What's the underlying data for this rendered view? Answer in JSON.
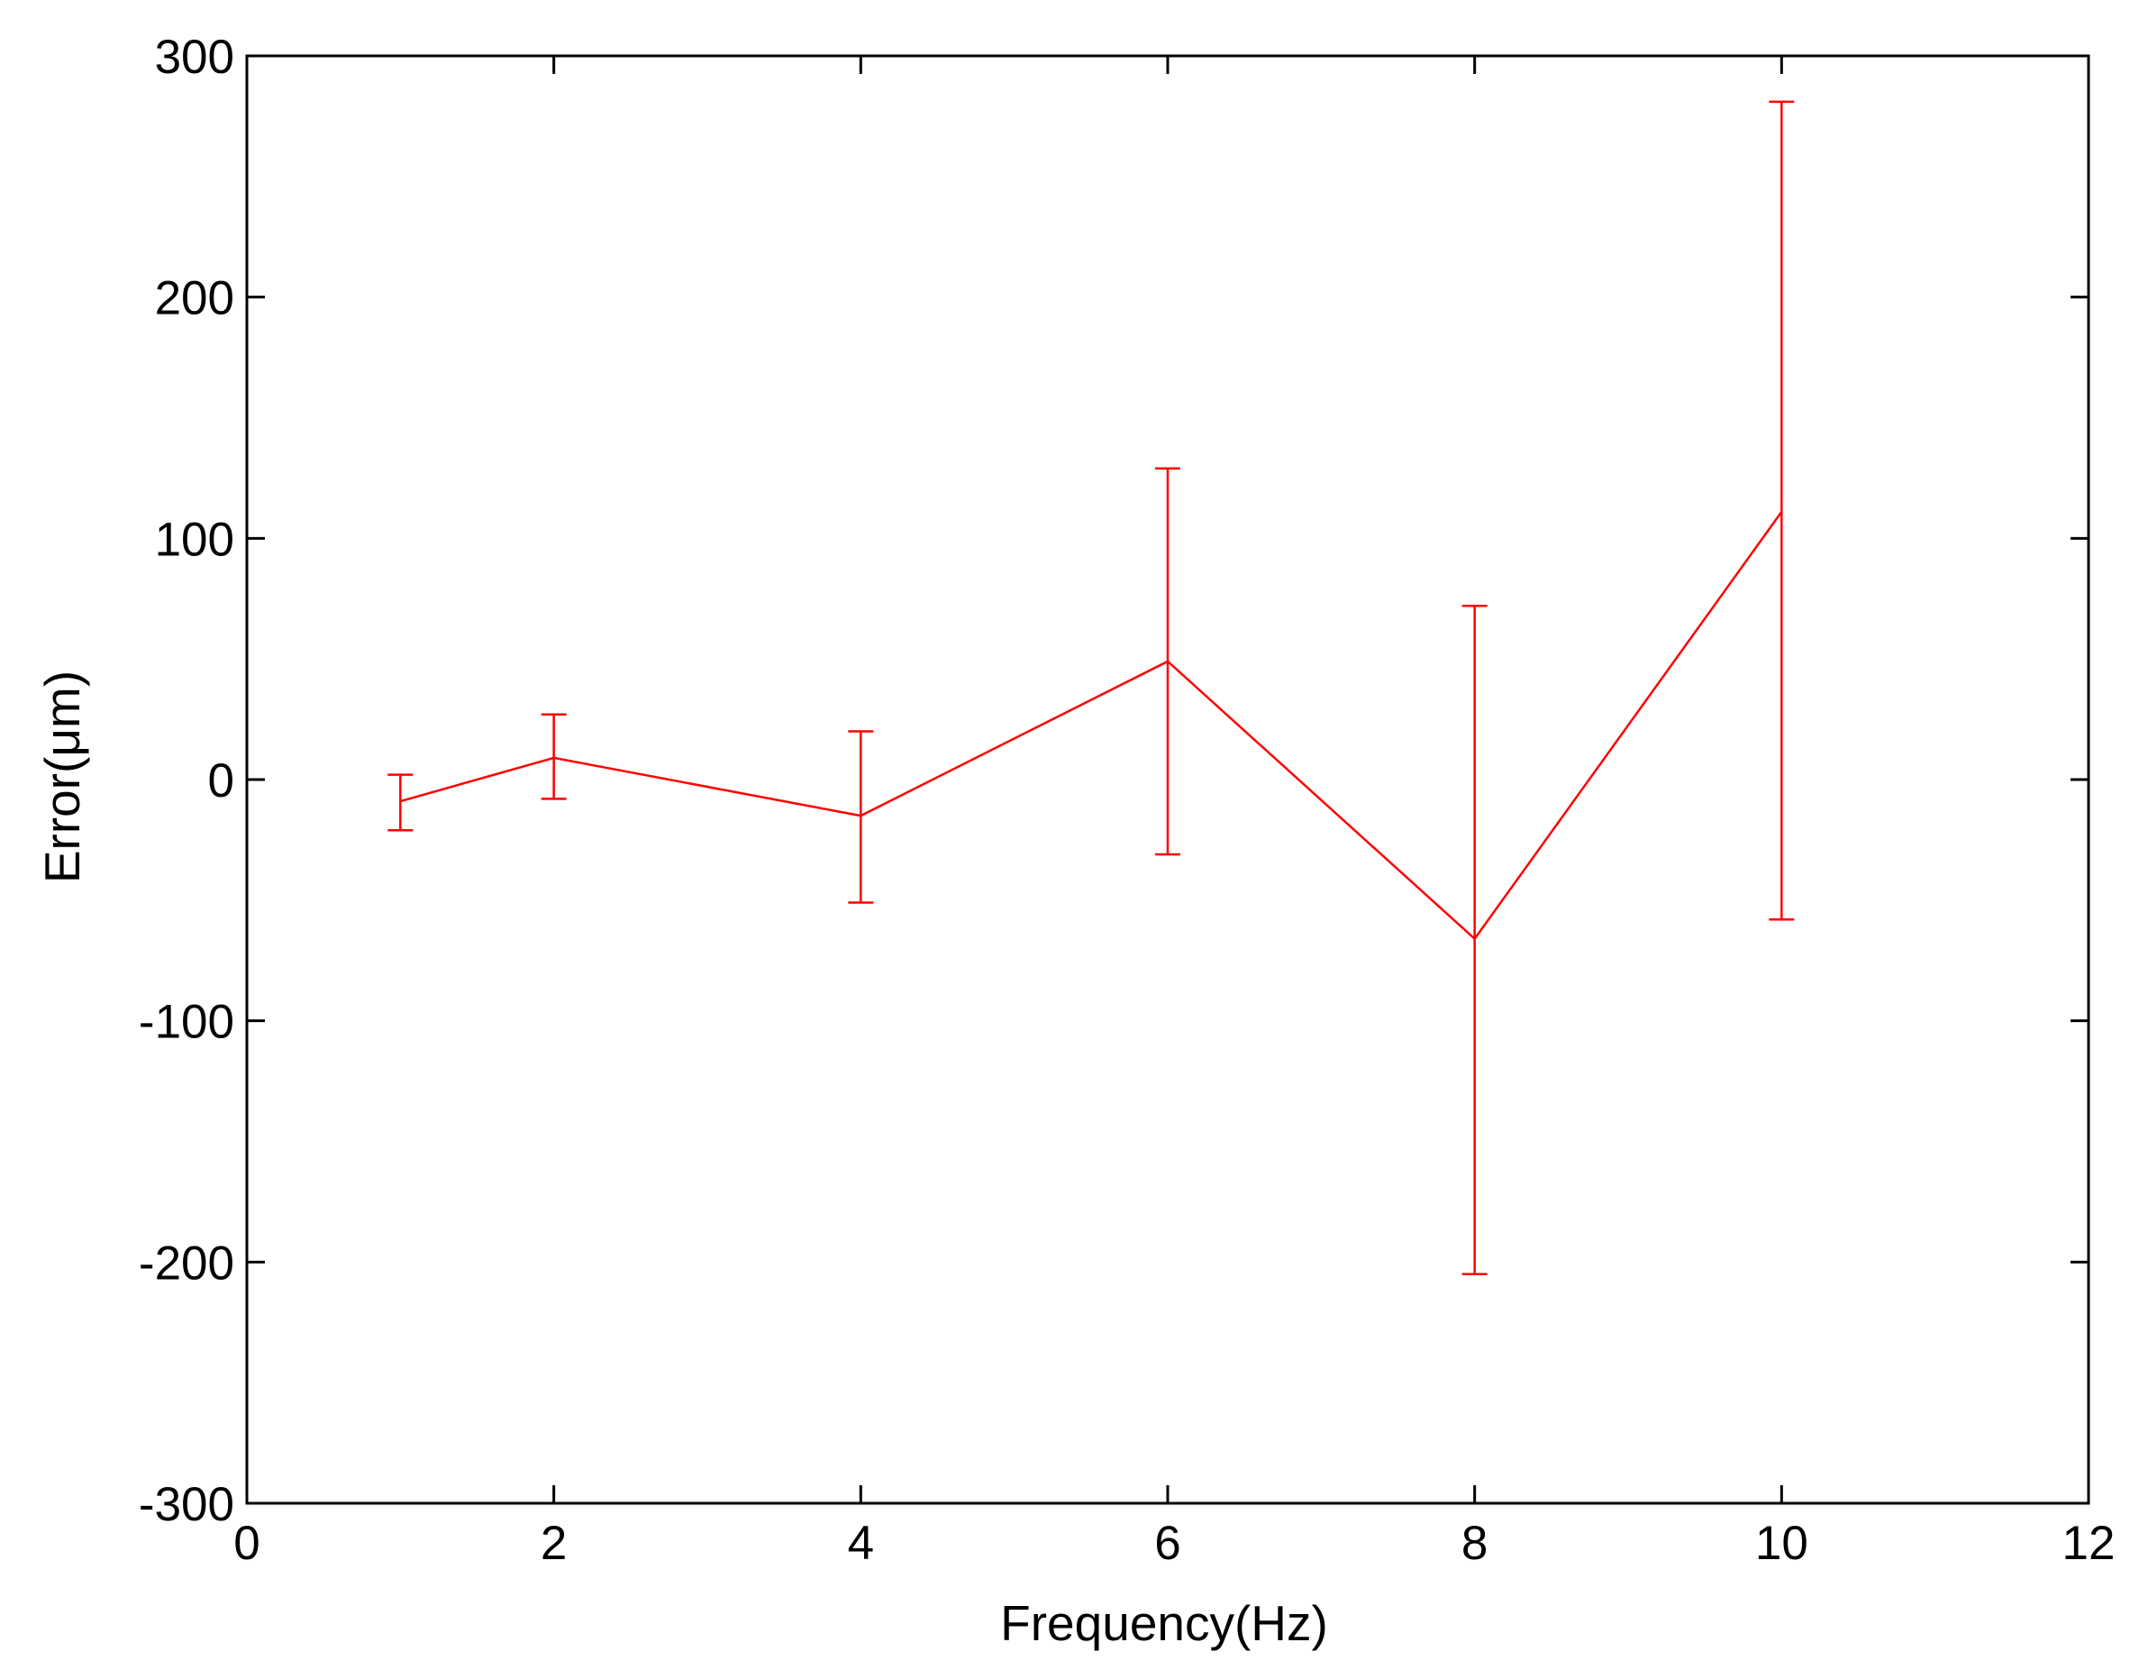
{
  "chart_data": {
    "type": "line",
    "title": "",
    "xlabel": "Frequency(Hz)",
    "ylabel": "Error(μm)",
    "xlim": [
      0,
      12
    ],
    "ylim": [
      -300,
      300
    ],
    "xticks": [
      0,
      2,
      4,
      6,
      8,
      10,
      12
    ],
    "yticks": [
      300,
      200,
      100,
      0,
      -100,
      -200,
      -300
    ],
    "xtick_labels": [
      "0",
      "2",
      "4",
      "6",
      "8",
      "10",
      "12"
    ],
    "ytick_labels": [
      "300",
      "200",
      "100",
      "0",
      "-100",
      "-200",
      "-300"
    ],
    "grid": false,
    "legend": "none",
    "series": [
      {
        "color": "#ff0000",
        "x": [
          1,
          2,
          4,
          6,
          8,
          10
        ],
        "y": [
          -9,
          9,
          -15,
          49,
          -66,
          111
        ],
        "error_low": [
          -21,
          -8,
          -51,
          -31,
          -205,
          -58
        ],
        "error_high": [
          2,
          27,
          20,
          129,
          72,
          281
        ]
      }
    ]
  }
}
